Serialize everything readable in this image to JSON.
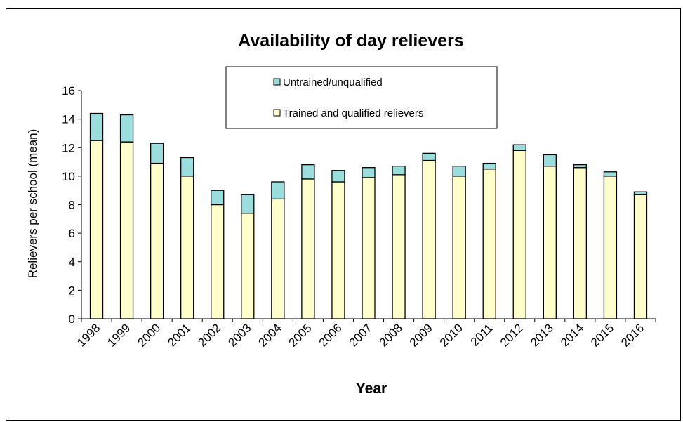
{
  "chart_data": {
    "type": "bar",
    "stacked": true,
    "title": "Availability of day relievers",
    "xlabel": "Year",
    "ylabel": "Relievers per school (mean)",
    "ylim": [
      0,
      16
    ],
    "yticks": [
      0,
      2,
      4,
      6,
      8,
      10,
      12,
      14,
      16
    ],
    "grid": false,
    "legend_position": "top-center",
    "categories": [
      "1998",
      "1999",
      "2000",
      "2001",
      "2002",
      "2003",
      "2004",
      "2005",
      "2006",
      "2007",
      "2008",
      "2009",
      "2010",
      "2011",
      "2012",
      "2013",
      "2014",
      "2015",
      "2016"
    ],
    "series": [
      {
        "name": "Trained and qualified relievers",
        "color": "#FFFFCC",
        "values": [
          12.5,
          12.4,
          10.9,
          10.0,
          8.0,
          7.4,
          8.4,
          9.8,
          9.6,
          9.9,
          10.1,
          11.1,
          10.0,
          10.5,
          11.8,
          10.7,
          10.6,
          10.0,
          8.7
        ]
      },
      {
        "name": "Untrained/unqualified",
        "color": "#99DDDD",
        "values": [
          1.9,
          1.9,
          1.4,
          1.3,
          1.0,
          1.3,
          1.2,
          1.0,
          0.8,
          0.7,
          0.6,
          0.5,
          0.7,
          0.4,
          0.4,
          0.8,
          0.2,
          0.3,
          0.2
        ]
      }
    ]
  }
}
